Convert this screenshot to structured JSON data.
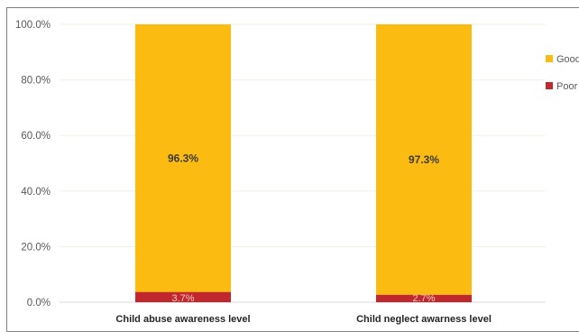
{
  "chart_data": {
    "type": "bar",
    "stacked": true,
    "categories": [
      "Child abuse awareness level",
      "Child neglect awarness level"
    ],
    "series": [
      {
        "name": "Poor",
        "values": [
          3.7,
          2.7
        ],
        "labels": [
          "3.7%",
          "2.7%"
        ],
        "color": "#c0282d"
      },
      {
        "name": "Good",
        "values": [
          96.3,
          97.3
        ],
        "labels": [
          "96.3%",
          "97.3%"
        ],
        "color": "#fbbb10"
      }
    ],
    "yticks": [
      "0.0%",
      "20.0%",
      "40.0%",
      "60.0%",
      "80.0%",
      "100.0%"
    ],
    "ylim": [
      0,
      100
    ],
    "grid": true,
    "legend": "right",
    "legend_entries": [
      "Good",
      "Poor"
    ]
  }
}
